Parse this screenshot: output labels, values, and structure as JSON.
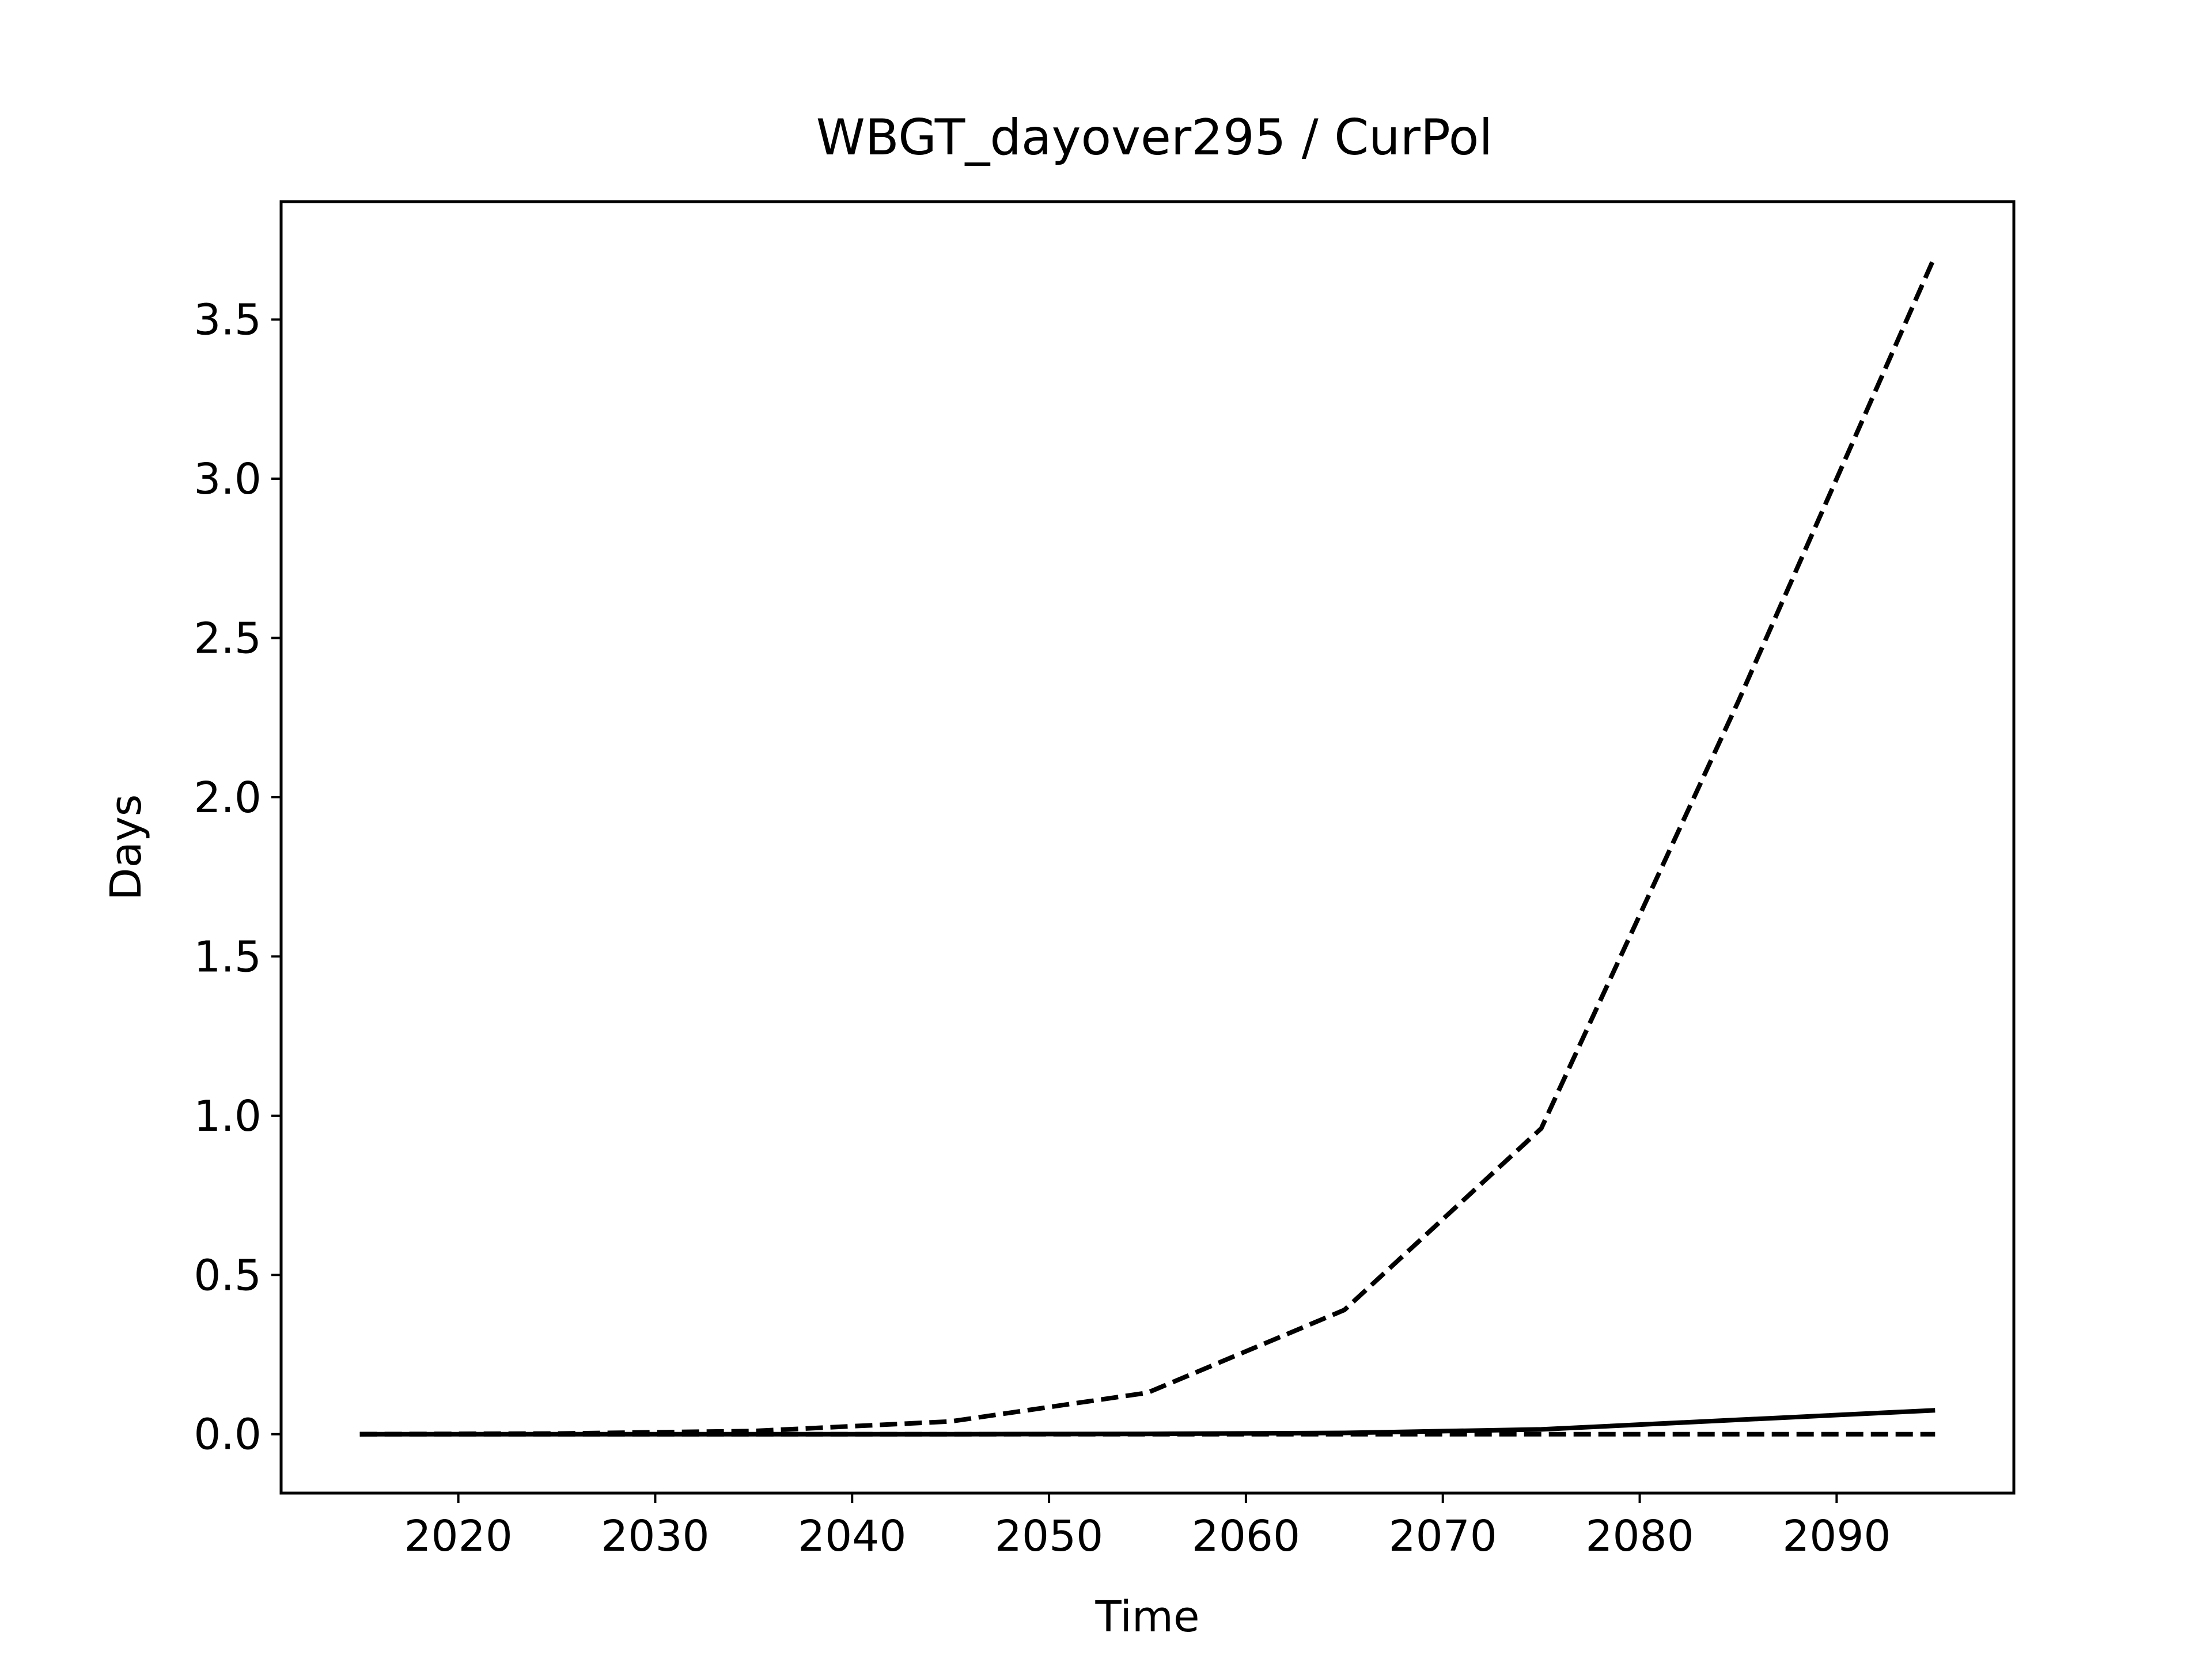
{
  "chart_data": {
    "type": "line",
    "title": "WBGT_dayover295 / CurPol",
    "xlabel": "Time",
    "ylabel": "Days",
    "xlim": [
      2011,
      2099
    ],
    "ylim": [
      -0.185,
      3.87
    ],
    "xticks": [
      2020,
      2030,
      2040,
      2050,
      2060,
      2070,
      2080,
      2090
    ],
    "yticks": [
      0.0,
      0.5,
      1.0,
      1.5,
      2.0,
      2.5,
      3.0,
      3.5
    ],
    "ytick_labels": [
      "0.0",
      "0.5",
      "1.0",
      "1.5",
      "2.0",
      "2.5",
      "3.0",
      "3.5"
    ],
    "grid": false,
    "legend": "none",
    "series": [
      {
        "style": "dashed",
        "color": "#000000",
        "x": [
          2015,
          2025,
          2035,
          2045,
          2055,
          2065,
          2075,
          2085,
          2095
        ],
        "values": [
          0.0,
          0.002,
          0.01,
          0.04,
          0.13,
          0.39,
          0.96,
          2.3,
          3.7
        ]
      },
      {
        "style": "solid",
        "color": "#000000",
        "x": [
          2015,
          2025,
          2035,
          2045,
          2055,
          2065,
          2075,
          2085,
          2095
        ],
        "values": [
          0.0,
          0.0,
          0.0,
          0.0,
          0.001,
          0.004,
          0.015,
          0.045,
          0.075
        ]
      },
      {
        "style": "dashed",
        "color": "#000000",
        "x": [
          2015,
          2025,
          2035,
          2045,
          2055,
          2065,
          2075,
          2085,
          2095
        ],
        "values": [
          0.0,
          0.0,
          0.0,
          0.0,
          0.0,
          0.0,
          0.0,
          0.0,
          0.0
        ]
      }
    ]
  }
}
